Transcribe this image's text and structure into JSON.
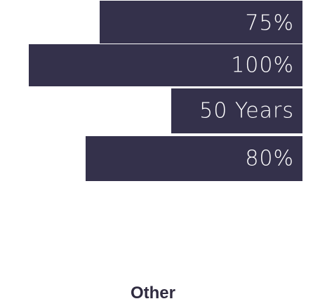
{
  "chart_data": {
    "type": "bar",
    "orientation": "horizontal",
    "title": "Other",
    "bar_color": "#34314b",
    "text_color": "#ffffff",
    "title_color": "#2f2b3f",
    "bars": [
      {
        "label": "75%",
        "value": 75
      },
      {
        "label": "100%",
        "value": 100
      },
      {
        "label": "50 Years",
        "value": 50
      },
      {
        "label": "80%",
        "value": 80
      }
    ]
  }
}
